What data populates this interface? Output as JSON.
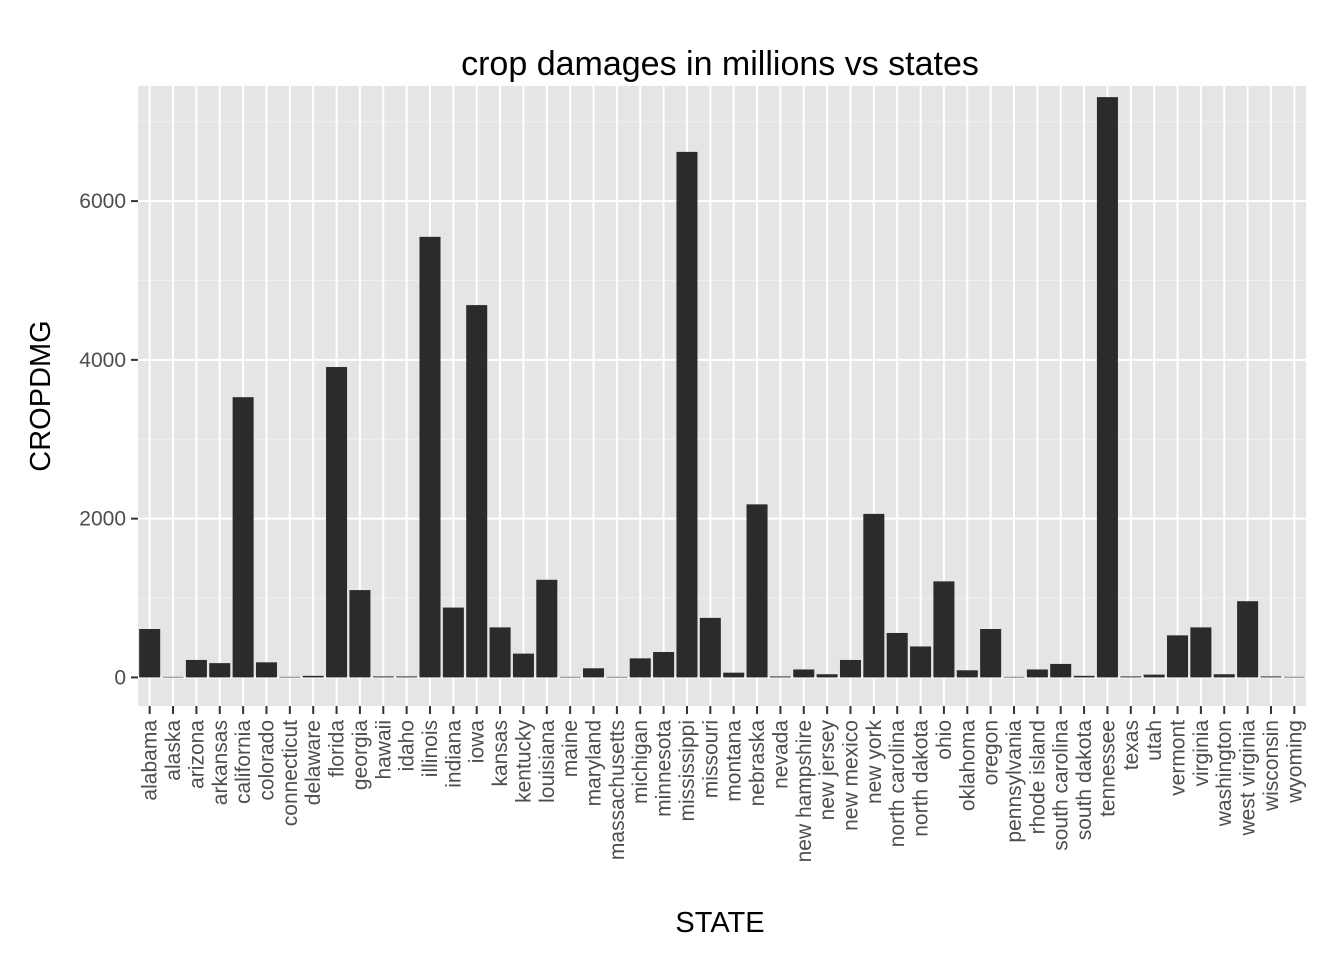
{
  "chart_data": {
    "type": "bar",
    "title": "crop damages in millions vs states",
    "xlabel": "STATE",
    "ylabel": "CROPDMG",
    "ylim": [
      -360,
      7450
    ],
    "yticks": [
      0,
      2000,
      4000,
      6000
    ],
    "grid": true,
    "categories": [
      "alabama",
      "alaska",
      "arizona",
      "arkansas",
      "california",
      "colorado",
      "connecticut",
      "delaware",
      "florida",
      "georgia",
      "hawaii",
      "idaho",
      "illinois",
      "indiana",
      "iowa",
      "kansas",
      "kentucky",
      "louisiana",
      "maine",
      "maryland",
      "massachusetts",
      "michigan",
      "minnesota",
      "mississippi",
      "missouri",
      "montana",
      "nebraska",
      "nevada",
      "new hampshire",
      "new jersey",
      "new mexico",
      "new york",
      "north carolina",
      "north dakota",
      "ohio",
      "oklahoma",
      "oregon",
      "pennsylvania",
      "rhode island",
      "south carolina",
      "south dakota",
      "tennessee",
      "texas",
      "utah",
      "vermont",
      "virginia",
      "washington",
      "west virginia",
      "wisconsin",
      "wyoming"
    ],
    "values": [
      610,
      0,
      220,
      180,
      3530,
      190,
      0,
      20,
      3910,
      1100,
      5,
      5,
      5550,
      880,
      4690,
      630,
      300,
      1230,
      0,
      115,
      0,
      240,
      320,
      6620,
      750,
      60,
      2180,
      10,
      100,
      40,
      220,
      2060,
      560,
      390,
      1210,
      90,
      610,
      0,
      100,
      170,
      20,
      7310,
      5,
      35,
      530,
      630,
      40,
      960,
      5,
      0
    ],
    "colors": {
      "bar": "#2b2b2b",
      "panel": "#e5e5e5",
      "grid_major": "#ffffff",
      "grid_minor": "#f0f0f0",
      "tick_text": "#4d4d4d"
    }
  }
}
